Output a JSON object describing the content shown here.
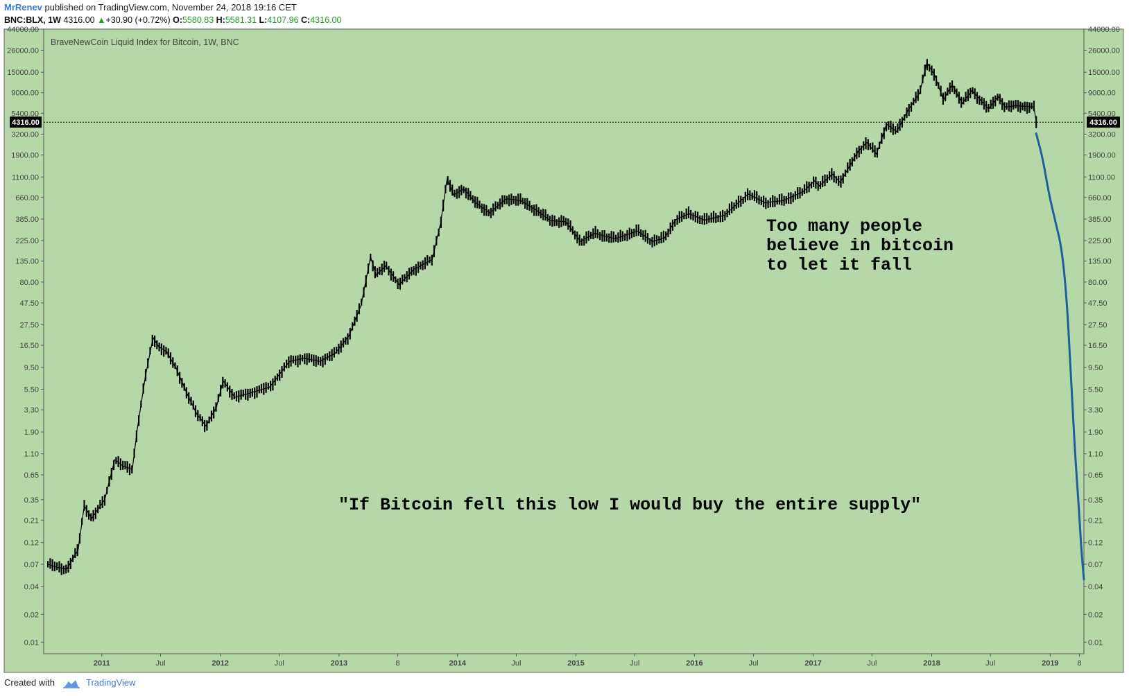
{
  "header": {
    "author": "MrRenev",
    "published_text": "published on TradingView.com, November 24, 2018 19:16 CET",
    "symbol": "BNC:BLX, 1W",
    "last_price": "4316.00",
    "change": "+30.90 (+0.72%)",
    "o_label": "O:",
    "o_value": "5580.83",
    "h_label": "H:",
    "h_value": "5581.31",
    "l_label": "L:",
    "l_value": "4107.96",
    "c_label": "C:",
    "c_value": "4316.00"
  },
  "footer": {
    "created_with": "Created with",
    "brand": "TradingView"
  },
  "colors": {
    "plot_bg": "#b6d7a8",
    "candle": "#000000",
    "projection": "#1f5f9e",
    "price_tag": "#000000"
  },
  "chart_data": {
    "type": "candlestick",
    "title": "BraveNewCoin Liquid Index for Bitcoin, 1W, BNC",
    "y_scale": "log",
    "ylim": [
      0.0075,
      44000
    ],
    "xlim": [
      "2010-07-06",
      "2019-04-15"
    ],
    "y_ticks": [
      "44000.00",
      "26000.00",
      "15000.00",
      "9000.00",
      "5400.00",
      "3200.00",
      "1900.00",
      "1100.00",
      "660.00",
      "385.00",
      "225.00",
      "135.00",
      "80.00",
      "47.50",
      "27.50",
      "16.50",
      "9.50",
      "5.50",
      "3.30",
      "1.90",
      "1.10",
      "0.65",
      "0.35",
      "0.21",
      "0.12",
      "0.07",
      "0.04",
      "0.02",
      "0.01"
    ],
    "x_ticks": [
      {
        "label": "2011",
        "date": "2011-01-01",
        "bold": true
      },
      {
        "label": "Jul",
        "date": "2011-07-01",
        "bold": false
      },
      {
        "label": "2012",
        "date": "2012-01-01",
        "bold": true
      },
      {
        "label": "Jul",
        "date": "2012-07-01",
        "bold": false
      },
      {
        "label": "2013",
        "date": "2013-01-01",
        "bold": true
      },
      {
        "label": "8",
        "date": "2013-07-01",
        "bold": false
      },
      {
        "label": "2014",
        "date": "2014-01-01",
        "bold": true
      },
      {
        "label": "Jul",
        "date": "2014-07-01",
        "bold": false
      },
      {
        "label": "2015",
        "date": "2015-01-01",
        "bold": true
      },
      {
        "label": "Jul",
        "date": "2015-07-01",
        "bold": false
      },
      {
        "label": "2016",
        "date": "2016-01-01",
        "bold": true
      },
      {
        "label": "Jul",
        "date": "2016-07-01",
        "bold": false
      },
      {
        "label": "2017",
        "date": "2017-01-01",
        "bold": true
      },
      {
        "label": "Jul",
        "date": "2017-07-01",
        "bold": false
      },
      {
        "label": "2018",
        "date": "2018-01-01",
        "bold": true
      },
      {
        "label": "Jul",
        "date": "2018-07-01",
        "bold": false
      },
      {
        "label": "2019",
        "date": "2019-01-01",
        "bold": true
      },
      {
        "label": "8",
        "date": "2019-04-01",
        "bold": false
      }
    ],
    "price_path": [
      [
        "2010-07-19",
        0.07
      ],
      [
        "2010-08-15",
        0.065
      ],
      [
        "2010-09-15",
        0.062
      ],
      [
        "2010-10-20",
        0.1
      ],
      [
        "2010-11-08",
        0.3
      ],
      [
        "2010-12-01",
        0.22
      ],
      [
        "2011-01-10",
        0.35
      ],
      [
        "2011-02-10",
        0.95
      ],
      [
        "2011-03-10",
        0.8
      ],
      [
        "2011-04-05",
        0.75
      ],
      [
        "2011-04-20",
        2.0
      ],
      [
        "2011-05-15",
        7.5
      ],
      [
        "2011-06-08",
        20.0
      ],
      [
        "2011-06-25",
        16.0
      ],
      [
        "2011-07-20",
        14.0
      ],
      [
        "2011-08-20",
        9.0
      ],
      [
        "2011-09-20",
        5.0
      ],
      [
        "2011-10-20",
        3.0
      ],
      [
        "2011-11-18",
        2.2
      ],
      [
        "2011-12-20",
        3.5
      ],
      [
        "2012-01-10",
        6.8
      ],
      [
        "2012-02-15",
        4.5
      ],
      [
        "2012-04-01",
        5.0
      ],
      [
        "2012-06-01",
        5.8
      ],
      [
        "2012-08-01",
        11.0
      ],
      [
        "2012-09-15",
        12.0
      ],
      [
        "2012-11-01",
        11.0
      ],
      [
        "2012-12-20",
        13.5
      ],
      [
        "2013-02-01",
        21.0
      ],
      [
        "2013-03-10",
        45.0
      ],
      [
        "2013-04-08",
        150.0
      ],
      [
        "2013-04-25",
        95.0
      ],
      [
        "2013-05-25",
        120.0
      ],
      [
        "2013-07-05",
        75.0
      ],
      [
        "2013-08-20",
        110.0
      ],
      [
        "2013-10-15",
        140.0
      ],
      [
        "2013-11-10",
        350.0
      ],
      [
        "2013-11-30",
        1050.0
      ],
      [
        "2013-12-20",
        700.0
      ],
      [
        "2014-01-20",
        820.0
      ],
      [
        "2014-02-25",
        580.0
      ],
      [
        "2014-04-10",
        450.0
      ],
      [
        "2014-06-01",
        640.0
      ],
      [
        "2014-07-15",
        610.0
      ],
      [
        "2014-09-01",
        480.0
      ],
      [
        "2014-10-15",
        370.0
      ],
      [
        "2014-12-01",
        360.0
      ],
      [
        "2015-01-15",
        220.0
      ],
      [
        "2015-03-01",
        270.0
      ],
      [
        "2015-05-01",
        235.0
      ],
      [
        "2015-07-10",
        285.0
      ],
      [
        "2015-08-25",
        220.0
      ],
      [
        "2015-10-01",
        240.0
      ],
      [
        "2015-11-05",
        380.0
      ],
      [
        "2015-12-15",
        440.0
      ],
      [
        "2016-02-01",
        375.0
      ],
      [
        "2016-04-01",
        420.0
      ],
      [
        "2016-06-15",
        720.0
      ],
      [
        "2016-08-05",
        580.0
      ],
      [
        "2016-10-01",
        610.0
      ],
      [
        "2016-12-01",
        760.0
      ],
      [
        "2017-01-05",
        1000.0
      ],
      [
        "2017-01-20",
        880.0
      ],
      [
        "2017-03-01",
        1180.0
      ],
      [
        "2017-03-25",
        960.0
      ],
      [
        "2017-05-20",
        2100.0
      ],
      [
        "2017-06-15",
        2600.0
      ],
      [
        "2017-07-15",
        1950.0
      ],
      [
        "2017-08-15",
        4100.0
      ],
      [
        "2017-09-15",
        3400.0
      ],
      [
        "2017-10-20",
        5800.0
      ],
      [
        "2017-11-25",
        9000.0
      ],
      [
        "2017-12-17",
        19000.0
      ],
      [
        "2018-01-10",
        14000.0
      ],
      [
        "2018-02-06",
        7500.0
      ],
      [
        "2018-03-05",
        11000.0
      ],
      [
        "2018-04-05",
        6900.0
      ],
      [
        "2018-05-05",
        9500.0
      ],
      [
        "2018-06-25",
        6000.0
      ],
      [
        "2018-07-25",
        8200.0
      ],
      [
        "2018-08-15",
        6300.0
      ],
      [
        "2018-09-15",
        6500.0
      ],
      [
        "2018-10-20",
        6400.0
      ],
      [
        "2018-11-12",
        6300.0
      ],
      [
        "2018-11-19",
        4316.0
      ]
    ],
    "projection": [
      [
        "2018-11-19",
        3250.0
      ],
      [
        "2018-12-10",
        1700.0
      ],
      [
        "2018-12-28",
        720.0
      ],
      [
        "2019-01-18",
        350.0
      ],
      [
        "2019-02-05",
        190.0
      ],
      [
        "2019-02-20",
        60.0
      ],
      [
        "2019-03-05",
        9.0
      ],
      [
        "2019-03-18",
        1.2
      ],
      [
        "2019-03-30",
        0.3
      ],
      [
        "2019-04-08",
        0.09
      ],
      [
        "2019-04-15",
        0.048
      ]
    ],
    "current_price": 4316.0,
    "current_price_label": "4316.00",
    "annotations": {
      "top": [
        "Too many people",
        "believe in bitcoin",
        "to let it fall"
      ],
      "bottom": "\"If Bitcoin fell this low I would buy the entire supply\""
    }
  }
}
